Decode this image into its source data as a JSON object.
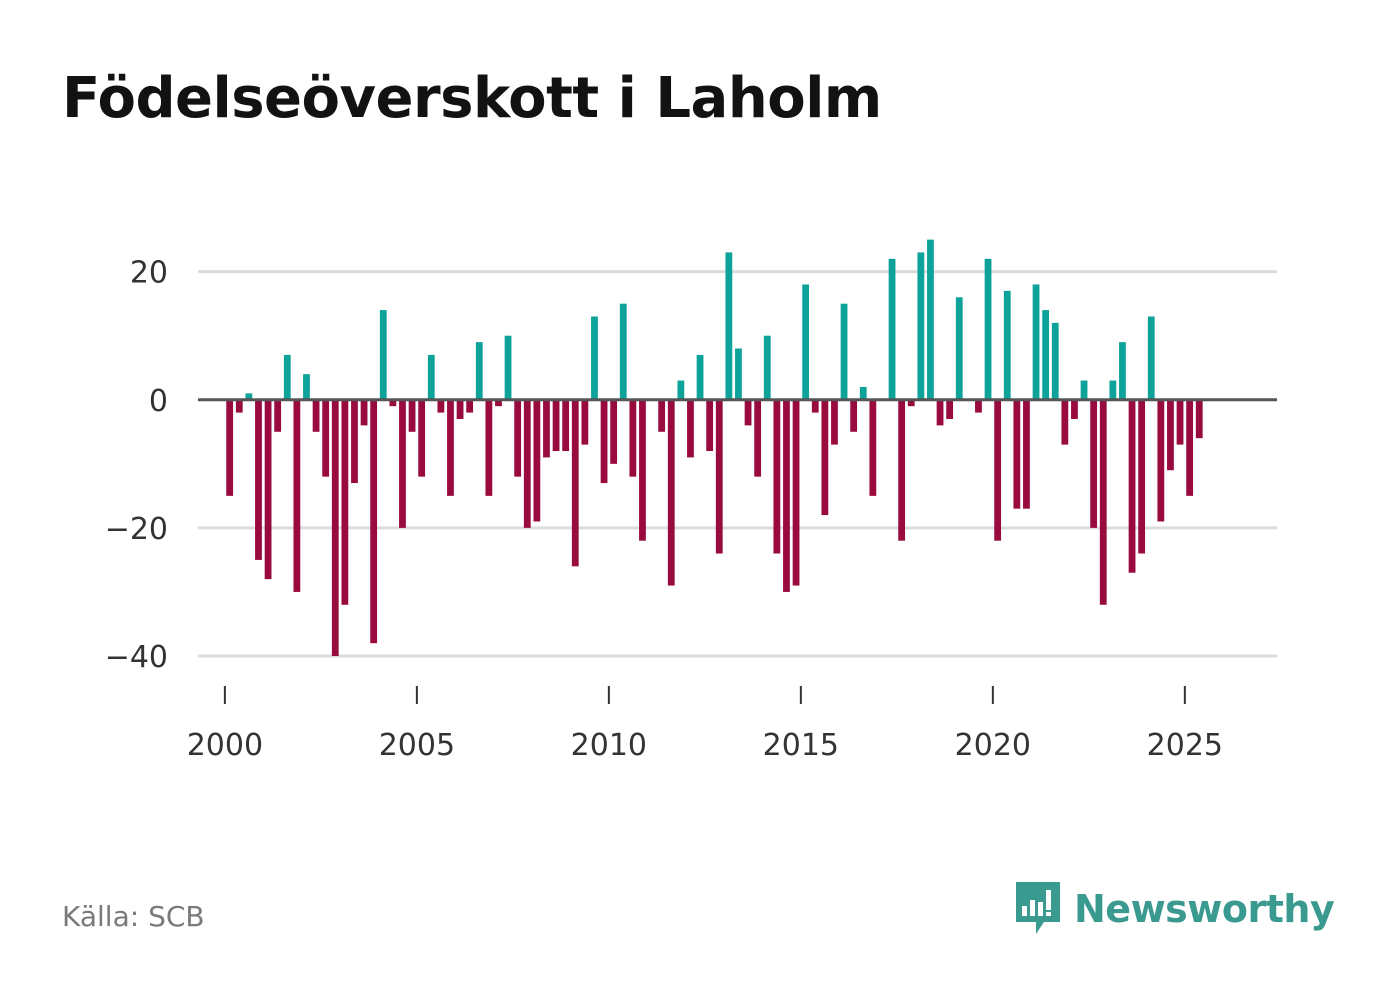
{
  "title": "Födelseöverskott i Laholm",
  "source": "Källa: SCB",
  "brand": {
    "name": "Newsworthy",
    "icon": "newsworthy-logo-icon",
    "color": "#3a9a8f"
  },
  "colors": {
    "positive": "#0ea39a",
    "negative": "#990b3e",
    "grid": "#dcdcdc",
    "zero": "#555555"
  },
  "chart_data": {
    "type": "bar",
    "title": "Födelseöverskott i Laholm",
    "xlabel": "",
    "ylabel": "",
    "ylim": [
      -40,
      29
    ],
    "xlim": [
      1999.3,
      2027.4
    ],
    "yticks": [
      20,
      0,
      -20,
      -40
    ],
    "ytick_labels": [
      "20",
      "0",
      "−20",
      "−40"
    ],
    "xticks": [
      2000,
      2005,
      2010,
      2015,
      2020,
      2025
    ],
    "xtick_labels": [
      "2000",
      "2005",
      "2010",
      "2015",
      "2020",
      "2025"
    ],
    "bar_period": "month-of-quarter (4 per year)",
    "start": 2000.125,
    "step": 0.25,
    "values": [
      -15,
      -2,
      1,
      -25,
      -28,
      -5,
      7,
      -30,
      4,
      -5,
      -12,
      -40,
      -32,
      -13,
      -4,
      -38,
      14,
      -1,
      -20,
      -5,
      -12,
      7,
      -2,
      -15,
      -3,
      -2,
      9,
      -15,
      -1,
      10,
      -12,
      -20,
      -19,
      -9,
      -8,
      -8,
      -26,
      -7,
      13,
      -13,
      -10,
      15,
      -12,
      -22,
      0,
      -5,
      -29,
      3,
      -9,
      7,
      -8,
      -24,
      23,
      8,
      -4,
      -12,
      10,
      -24,
      -30,
      -29,
      18,
      -2,
      -18,
      -7,
      15,
      -5,
      2,
      -15,
      0,
      22,
      -22,
      -1,
      23,
      25,
      -4,
      -3,
      16,
      0,
      -2,
      22,
      -22,
      17,
      -17,
      -17,
      18,
      14,
      12,
      -7,
      -3,
      3,
      -20,
      -32,
      3,
      9,
      -27,
      -24,
      13,
      -19,
      -11,
      -7,
      -15,
      -6
    ]
  }
}
